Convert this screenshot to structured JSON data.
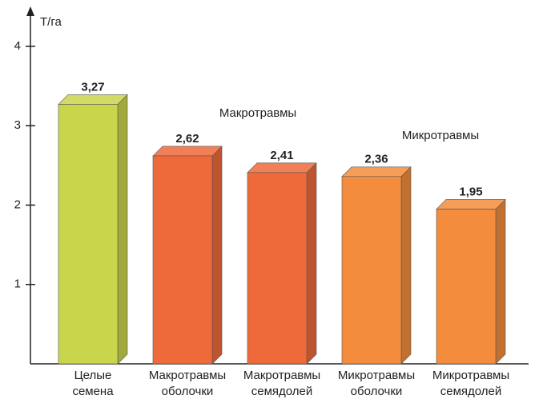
{
  "chart_data": {
    "type": "bar3d",
    "y_label": "Т/га",
    "categories": [
      [
        "Целые",
        "семена"
      ],
      [
        "Макротравмы",
        "оболочки"
      ],
      [
        "Макротравмы",
        "семядолей"
      ],
      [
        "Микротравмы",
        "оболочки"
      ],
      [
        "Микротравмы",
        "семядолей"
      ]
    ],
    "values": [
      3.27,
      2.62,
      2.41,
      2.36,
      1.95
    ],
    "value_labels": [
      "3,27",
      "2,62",
      "2,41",
      "2,36",
      "1,95"
    ],
    "colors": [
      "#c9d54a",
      "#ee6a3a",
      "#ee6a3a",
      "#f38c3c",
      "#f38c3c"
    ],
    "annotations": [
      "Макротравмы",
      "Микротравмы"
    ],
    "ylim": [
      0,
      4
    ],
    "yticks": [
      1,
      2,
      3,
      4
    ]
  }
}
